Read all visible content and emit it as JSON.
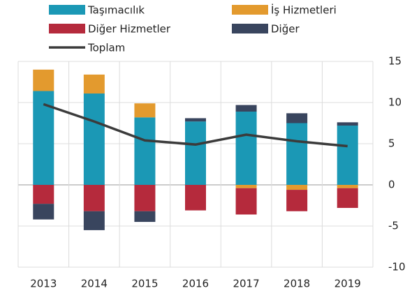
{
  "chart_data": {
    "type": "bar",
    "stacked": true,
    "categories": [
      "2013",
      "2014",
      "2015",
      "2016",
      "2017",
      "2018",
      "2019"
    ],
    "series": [
      {
        "name": "Taşımacılık",
        "color": "#1b98b5",
        "values": [
          11.4,
          11.1,
          8.2,
          7.7,
          8.9,
          7.5,
          7.2
        ]
      },
      {
        "name": "İş Hizmetleri",
        "color": "#e39a2e",
        "values": [
          2.6,
          2.3,
          1.7,
          0,
          -0.4,
          -0.6,
          -0.4
        ]
      },
      {
        "name": "Diğer Hizmetler",
        "color": "#b52a3c",
        "values": [
          -2.3,
          -3.2,
          -3.2,
          -3.1,
          -3.2,
          -2.6,
          -2.4
        ]
      },
      {
        "name": "Diğer",
        "color": "#39455e",
        "values": [
          -1.9,
          -2.3,
          -1.3,
          0.4,
          0.8,
          1.2,
          0.4
        ]
      },
      {
        "name": "Toplam",
        "type": "line",
        "color": "#3b3b3b",
        "values": [
          9.8,
          7.7,
          5.4,
          4.9,
          6.1,
          5.3,
          4.7
        ]
      }
    ],
    "ylim": [
      -10,
      15
    ],
    "yticks": [
      -10,
      -5,
      0,
      5,
      10,
      15
    ],
    "y_axis_side": "right",
    "grid": true,
    "legend": "top"
  }
}
